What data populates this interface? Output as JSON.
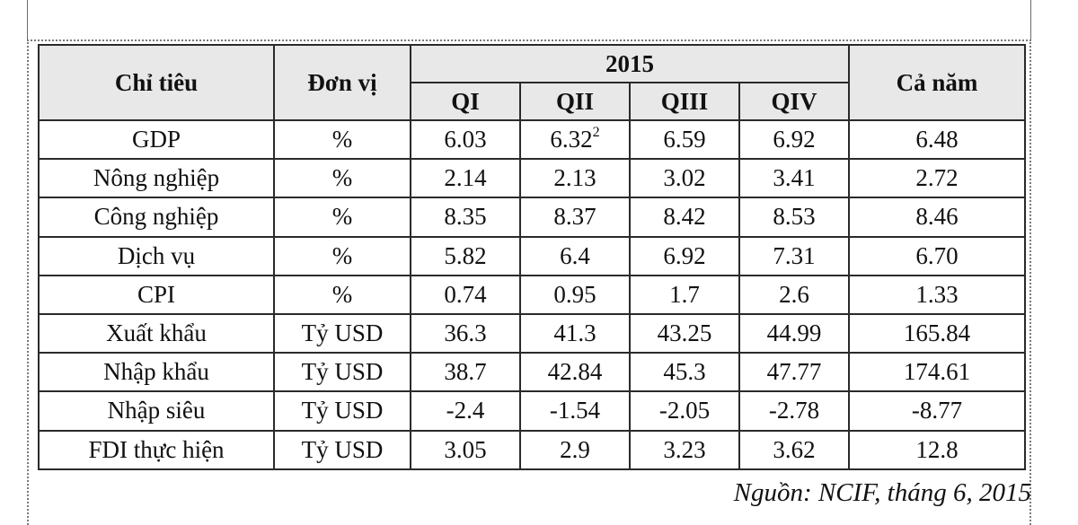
{
  "table": {
    "header": {
      "indicator": "Chỉ tiêu",
      "unit": "Đơn vị",
      "year": "2015",
      "quarters": [
        "QI",
        "QII",
        "QIII",
        "QIV"
      ],
      "full_year": "Cả năm"
    },
    "rows": [
      {
        "name": "GDP",
        "indent": false,
        "unit": "%",
        "q1": "6.03",
        "q2": "6.32",
        "q2_note": "2",
        "q3": "6.59",
        "q4": "6.92",
        "year": "6.48"
      },
      {
        "name": "Nông nghiệp",
        "indent": true,
        "unit": "%",
        "q1": "2.14",
        "q2": "2.13",
        "q3": "3.02",
        "q4": "3.41",
        "year": "2.72"
      },
      {
        "name": "Công nghiệp",
        "indent": true,
        "unit": "%",
        "q1": "8.35",
        "q2": "8.37",
        "q3": "8.42",
        "q4": "8.53",
        "year": "8.46"
      },
      {
        "name": "Dịch vụ",
        "indent": true,
        "unit": "%",
        "q1": "5.82",
        "q2": "6.4",
        "q3": "6.92",
        "q4": "7.31",
        "year": "6.70"
      },
      {
        "name": "CPI",
        "indent": false,
        "unit": "%",
        "q1": "0.74",
        "q2": "0.95",
        "q3": "1.7",
        "q4": "2.6",
        "year": "1.33"
      },
      {
        "name": "Xuất khẩu",
        "indent": false,
        "unit": "Tỷ USD",
        "q1": "36.3",
        "q2": "41.3",
        "q3": "43.25",
        "q4": "44.99",
        "year": "165.84"
      },
      {
        "name": "Nhập khẩu",
        "indent": false,
        "unit": "Tỷ USD",
        "q1": "38.7",
        "q2": "42.84",
        "q3": "45.3",
        "q4": "47.77",
        "year": "174.61"
      },
      {
        "name": "Nhập siêu",
        "indent": false,
        "unit": "Tỷ USD",
        "q1": "-2.4",
        "q2": "-1.54",
        "q3": "-2.05",
        "q4": "-2.78",
        "year": "-8.77"
      },
      {
        "name": "FDI thực hiện",
        "indent": false,
        "unit": "Tỷ USD",
        "q1": "3.05",
        "q2": "2.9",
        "q3": "3.23",
        "q4": "3.62",
        "year": "12.8"
      }
    ]
  },
  "source": "Nguồn: NCIF,  tháng 6, 2015"
}
